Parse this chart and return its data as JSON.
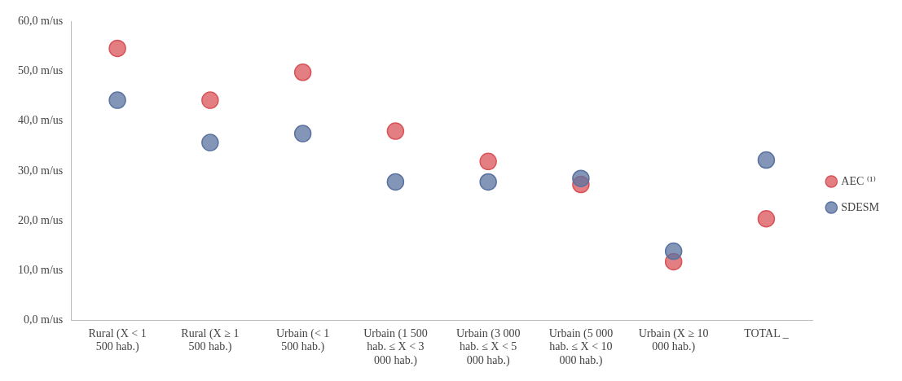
{
  "chart_data": {
    "type": "scatter",
    "categories": [
      "Rural (X < 1 500 hab.)",
      "Rural (X ≥ 1 500 hab.)",
      "Urbain (< 1 500 hab.)",
      "Urbain (1 500 hab. ≤ X < 3 000 hab.)",
      "Urbain (3 000 hab. ≤ X < 5 000 hab.)",
      "Urbain (5 000 hab. ≤ X < 10 000 hab.)",
      "Urbain (X ≥ 10 000 hab.)",
      "TOTAL _"
    ],
    "series": [
      {
        "name": "AEC ⁽¹⁾",
        "color": "#d9545a",
        "values": [
          54.6,
          44.2,
          49.8,
          38.0,
          31.9,
          27.3,
          11.8,
          20.4
        ]
      },
      {
        "name": "SDESM",
        "color": "#5b73a0",
        "values": [
          44.2,
          35.7,
          37.5,
          27.8,
          27.8,
          28.5,
          13.9,
          32.2
        ]
      }
    ],
    "ylim": [
      0,
      60
    ],
    "yticks": [
      {
        "value": 0,
        "label": "0,0 m/us"
      },
      {
        "value": 10,
        "label": "10,0 m/us"
      },
      {
        "value": 20,
        "label": "20,0 m/us"
      },
      {
        "value": 30,
        "label": "30,0 m/us"
      },
      {
        "value": 40,
        "label": "40,0 m/us"
      },
      {
        "value": 50,
        "label": "50,0 m/us"
      },
      {
        "value": 60,
        "label": "60,0 m/us"
      }
    ],
    "grid": false,
    "legend": "right",
    "marker": "circle"
  }
}
